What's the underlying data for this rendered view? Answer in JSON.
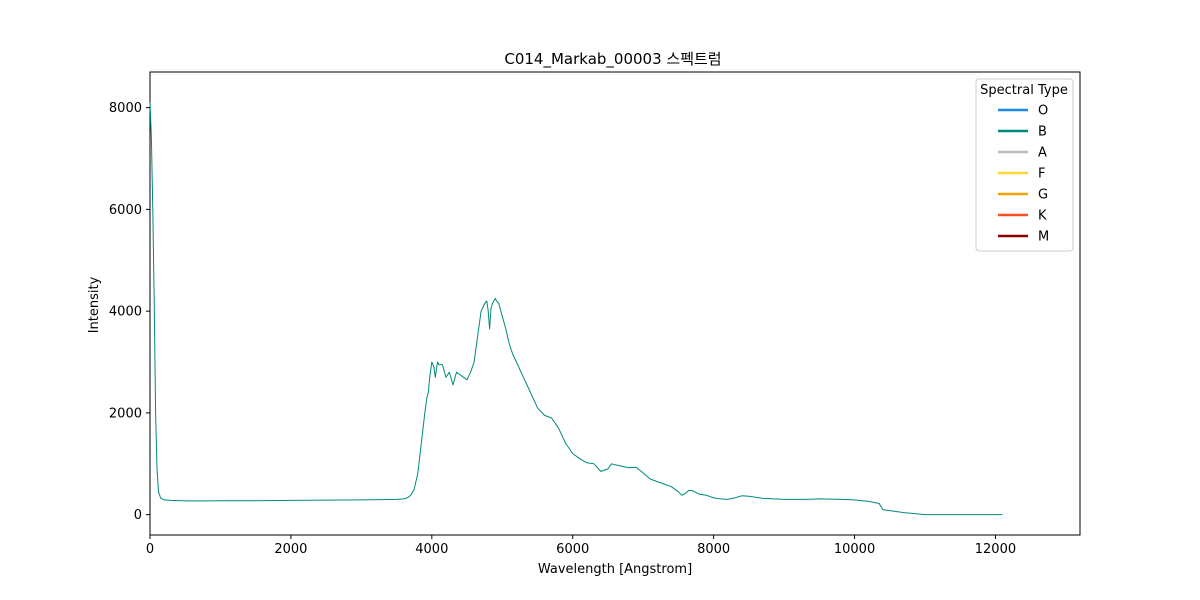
{
  "chart_data": {
    "type": "line",
    "title": "C014_Markab_00003 스펙트럼",
    "xlabel": "Wavelength [Angstrom]",
    "ylabel": "Intensity",
    "xlim": [
      0,
      13200
    ],
    "ylim": [
      -400,
      8700
    ],
    "xticks": [
      0,
      2000,
      4000,
      6000,
      8000,
      10000,
      12000
    ],
    "yticks": [
      0,
      2000,
      4000,
      6000,
      8000
    ],
    "grid": false,
    "legend": {
      "title": "Spectral Type",
      "position": "top-right",
      "entries": [
        {
          "label": "O",
          "color": "#1e88e5"
        },
        {
          "label": "B",
          "color": "#00897b"
        },
        {
          "label": "A",
          "color": "#bdbdbd"
        },
        {
          "label": "F",
          "color": "#fdd835"
        },
        {
          "label": "G",
          "color": "#f0a500"
        },
        {
          "label": "K",
          "color": "#f4511e"
        },
        {
          "label": "M",
          "color": "#8b0000"
        }
      ]
    },
    "series": [
      {
        "name": "",
        "color": "#00897b",
        "x": [
          0,
          20,
          40,
          60,
          80,
          100,
          120,
          150,
          200,
          300,
          500,
          800,
          1000,
          1500,
          2000,
          2500,
          3000,
          3300,
          3500,
          3600,
          3650,
          3700,
          3750,
          3800,
          3850,
          3900,
          3930,
          3950,
          3970,
          4000,
          4030,
          4050,
          4080,
          4100,
          4150,
          4200,
          4250,
          4300,
          4330,
          4350,
          4400,
          4450,
          4500,
          4550,
          4600,
          4650,
          4700,
          4750,
          4780,
          4800,
          4820,
          4840,
          4860,
          4880,
          4900,
          4920,
          4950,
          5000,
          5050,
          5100,
          5150,
          5200,
          5300,
          5400,
          5500,
          5600,
          5700,
          5800,
          5900,
          6000,
          6100,
          6200,
          6300,
          6400,
          6500,
          6550,
          6600,
          6700,
          6800,
          6900,
          7000,
          7100,
          7200,
          7300,
          7400,
          7500,
          7550,
          7600,
          7650,
          7700,
          7800,
          7900,
          8000,
          8100,
          8200,
          8300,
          8400,
          8500,
          8700,
          9000,
          9300,
          9500,
          9800,
          10000,
          10200,
          10350,
          10400,
          10500,
          10700,
          11000,
          11500,
          12000,
          12100
        ],
        "y": [
          8100,
          7400,
          6000,
          4200,
          2000,
          900,
          450,
          330,
          290,
          280,
          270,
          270,
          275,
          275,
          280,
          285,
          290,
          295,
          300,
          310,
          330,
          380,
          500,
          800,
          1400,
          2000,
          2300,
          2400,
          2700,
          3000,
          2900,
          2700,
          3000,
          2950,
          2950,
          2700,
          2800,
          2550,
          2700,
          2800,
          2750,
          2700,
          2650,
          2800,
          3000,
          3500,
          4000,
          4150,
          4200,
          4000,
          3650,
          4050,
          4150,
          4200,
          4250,
          4200,
          4150,
          3900,
          3650,
          3350,
          3150,
          3000,
          2700,
          2400,
          2100,
          1950,
          1900,
          1700,
          1400,
          1200,
          1100,
          1020,
          1000,
          850,
          900,
          1000,
          980,
          950,
          920,
          930,
          820,
          700,
          650,
          600,
          550,
          450,
          380,
          420,
          480,
          470,
          400,
          380,
          330,
          310,
          300,
          330,
          370,
          360,
          320,
          300,
          300,
          310,
          300,
          290,
          260,
          220,
          100,
          80,
          40,
          0,
          0,
          0,
          0
        ]
      }
    ]
  }
}
